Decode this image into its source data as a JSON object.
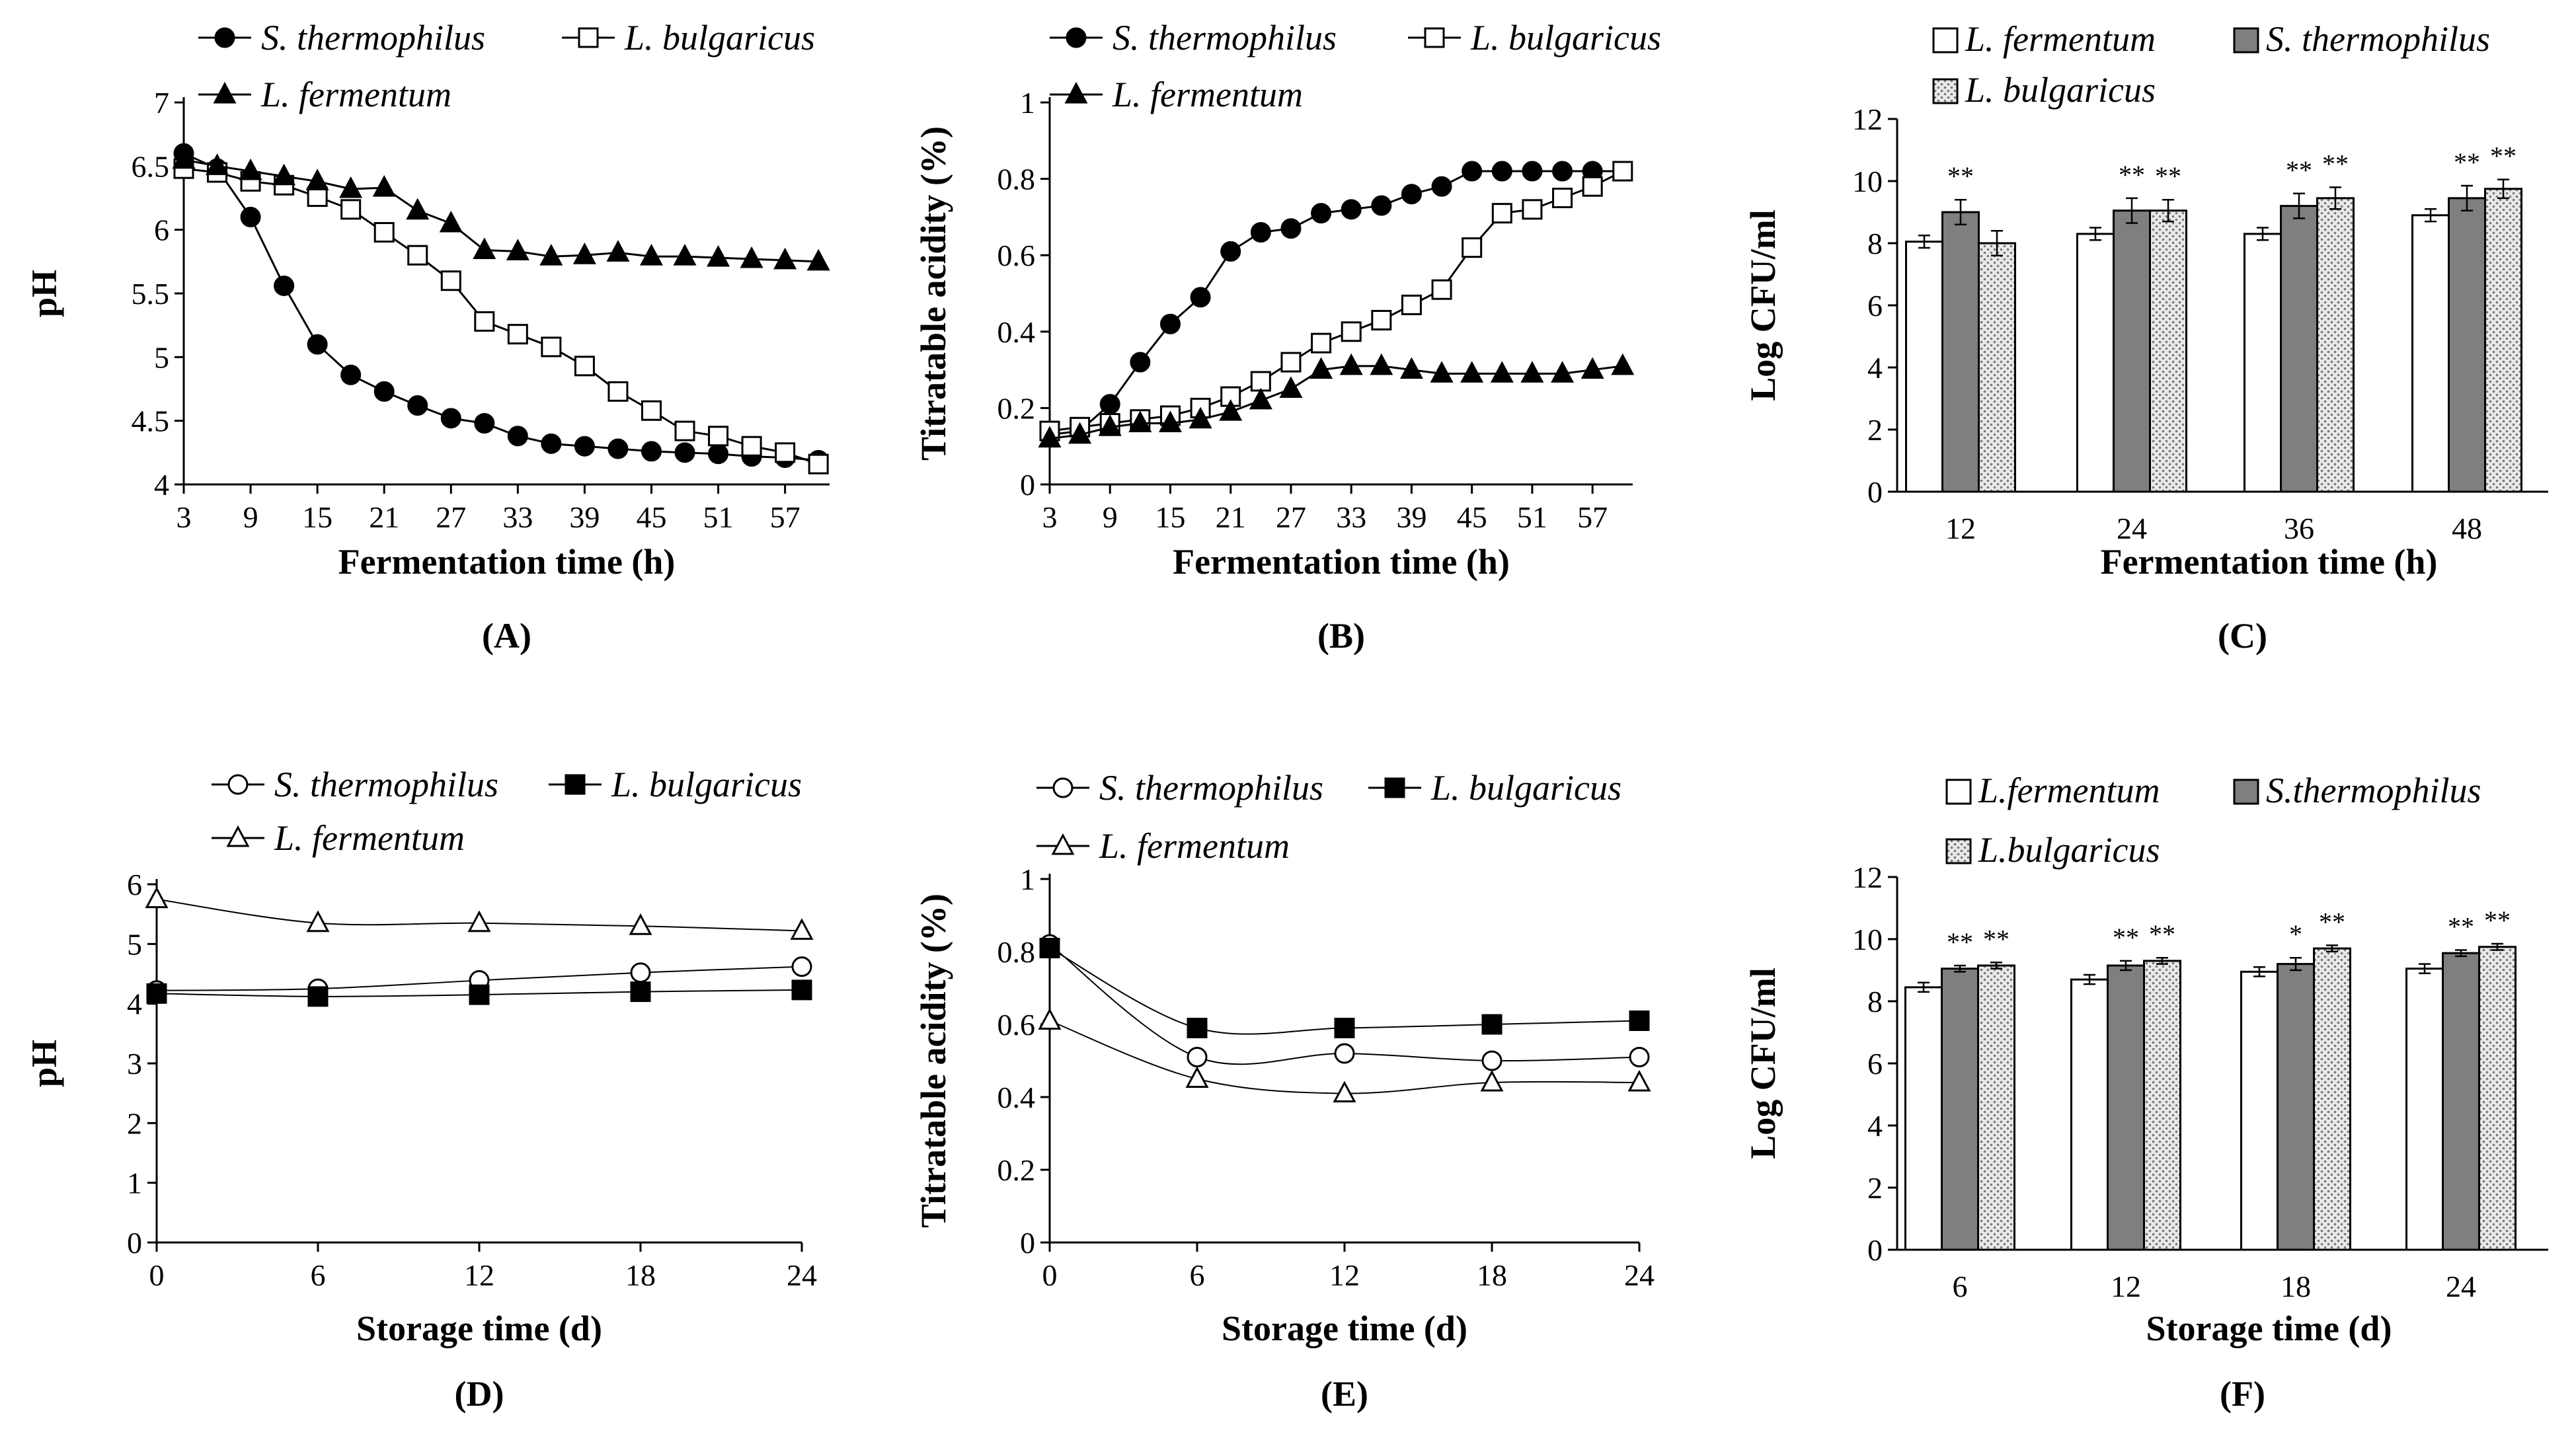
{
  "chart_data": [
    {
      "panel": "(A)",
      "type": "line",
      "xlabel": "Fermentation time (h)",
      "ylabel": "pH",
      "xlim": [
        3,
        61
      ],
      "ylim": [
        4,
        7
      ],
      "xticks": [
        "3",
        "9",
        "15",
        "21",
        "27",
        "33",
        "39",
        "45",
        "51",
        "57"
      ],
      "yticks": [
        "4",
        "4.5",
        "5",
        "5.5",
        "6",
        "6.5",
        "7"
      ],
      "series": [
        {
          "name": "S. thermophilus",
          "marker": "filled-circle",
          "x": [
            3,
            6,
            9,
            12,
            15,
            18,
            21,
            24,
            27,
            30,
            33,
            36,
            39,
            42,
            45,
            48,
            51,
            54,
            57,
            60
          ],
          "y": [
            6.6,
            6.48,
            6.1,
            5.56,
            5.1,
            4.86,
            4.73,
            4.62,
            4.52,
            4.48,
            4.38,
            4.32,
            4.3,
            4.28,
            4.26,
            4.25,
            4.24,
            4.22,
            4.21,
            4.19
          ]
        },
        {
          "name": "L. bulgaricus",
          "marker": "open-square",
          "x": [
            3,
            6,
            9,
            12,
            15,
            18,
            21,
            24,
            27,
            30,
            33,
            36,
            39,
            42,
            45,
            48,
            51,
            54,
            57,
            60
          ],
          "y": [
            6.48,
            6.45,
            6.38,
            6.35,
            6.26,
            6.16,
            5.98,
            5.8,
            5.6,
            5.28,
            5.18,
            5.08,
            4.93,
            4.73,
            4.58,
            4.42,
            4.38,
            4.3,
            4.25,
            4.16
          ]
        },
        {
          "name": "L. fermentum",
          "marker": "filled-triangle",
          "x": [
            3,
            6,
            9,
            12,
            15,
            18,
            21,
            24,
            27,
            30,
            33,
            36,
            39,
            42,
            45,
            48,
            51,
            54,
            57,
            60
          ],
          "y": [
            6.55,
            6.5,
            6.46,
            6.42,
            6.38,
            6.32,
            6.33,
            6.15,
            6.05,
            5.84,
            5.83,
            5.79,
            5.8,
            5.82,
            5.79,
            5.79,
            5.78,
            5.77,
            5.76,
            5.75
          ]
        }
      ],
      "legend": [
        "S. thermophilus",
        "L. bulgaricus",
        "L. fermentum"
      ]
    },
    {
      "panel": "(B)",
      "type": "line",
      "xlabel": "Fermentation time (h)",
      "ylabel": "Titratable acidity (%)",
      "xlim": [
        3,
        61
      ],
      "ylim": [
        0,
        1
      ],
      "xticks": [
        "3",
        "9",
        "15",
        "21",
        "27",
        "33",
        "39",
        "45",
        "51",
        "57"
      ],
      "yticks": [
        "0",
        "0.2",
        "0.4",
        "0.6",
        "0.8",
        "1"
      ],
      "series": [
        {
          "name": "S. thermophilus",
          "marker": "filled-circle",
          "x": [
            3,
            6,
            9,
            12,
            15,
            18,
            21,
            24,
            27,
            30,
            33,
            36,
            39,
            42,
            45,
            48,
            51,
            54,
            57,
            60
          ],
          "y": [
            0.13,
            0.14,
            0.21,
            0.32,
            0.42,
            0.49,
            0.61,
            0.66,
            0.67,
            0.71,
            0.72,
            0.73,
            0.76,
            0.78,
            0.82,
            0.82,
            0.82,
            0.82,
            0.82,
            0.82
          ]
        },
        {
          "name": "L. bulgaricus",
          "marker": "open-square",
          "x": [
            3,
            6,
            9,
            12,
            15,
            18,
            21,
            24,
            27,
            30,
            33,
            36,
            39,
            42,
            45,
            48,
            51,
            54,
            57,
            60
          ],
          "y": [
            0.14,
            0.15,
            0.16,
            0.17,
            0.18,
            0.2,
            0.23,
            0.27,
            0.32,
            0.37,
            0.4,
            0.43,
            0.47,
            0.51,
            0.62,
            0.71,
            0.72,
            0.75,
            0.78,
            0.82
          ]
        },
        {
          "name": "L. fermentum",
          "marker": "filled-triangle",
          "x": [
            3,
            6,
            9,
            12,
            15,
            18,
            21,
            24,
            27,
            30,
            33,
            36,
            39,
            42,
            45,
            48,
            51,
            54,
            57,
            60
          ],
          "y": [
            0.12,
            0.13,
            0.15,
            0.16,
            0.16,
            0.17,
            0.19,
            0.22,
            0.25,
            0.3,
            0.31,
            0.31,
            0.3,
            0.29,
            0.29,
            0.29,
            0.29,
            0.29,
            0.3,
            0.31
          ]
        }
      ],
      "legend": [
        "S. thermophilus",
        "L. bulgaricus",
        "L. fermentum"
      ]
    },
    {
      "panel": "(C)",
      "type": "bar",
      "xlabel": "Fermentation time (h)",
      "ylabel": "Log CFU/ml",
      "ylim": [
        0,
        12
      ],
      "yticks": [
        "0",
        "2",
        "4",
        "6",
        "8",
        "10",
        "12"
      ],
      "categories": [
        "12",
        "24",
        "36",
        "48"
      ],
      "series": [
        {
          "name": "L. fermentum",
          "fill": "white",
          "values": [
            8.05,
            8.3,
            8.3,
            8.9
          ],
          "errors": [
            0.2,
            0.2,
            0.2,
            0.2
          ],
          "sig": [
            "",
            "",
            "",
            ""
          ]
        },
        {
          "name": "S. thermophilus",
          "fill": "gray",
          "values": [
            9.0,
            9.05,
            9.2,
            9.45
          ],
          "errors": [
            0.4,
            0.4,
            0.4,
            0.4
          ],
          "sig": [
            "**",
            "**",
            "**",
            "**"
          ]
        },
        {
          "name": "L. bulgaricus",
          "fill": "dotted",
          "values": [
            8.0,
            9.05,
            9.45,
            9.75
          ],
          "errors": [
            0.4,
            0.35,
            0.35,
            0.3
          ],
          "sig": [
            "",
            "**",
            "**",
            "**"
          ]
        }
      ],
      "legend": [
        "L. fermentum",
        "S. thermophilus",
        "L. bulgaricus"
      ]
    },
    {
      "panel": "(D)",
      "type": "line",
      "xlabel": "Storage time (d)",
      "ylabel": "pH",
      "xlim": [
        0,
        24
      ],
      "ylim": [
        0,
        6
      ],
      "xticks": [
        "0",
        "6",
        "12",
        "18",
        "24"
      ],
      "yticks": [
        "0",
        "1",
        "2",
        "3",
        "4",
        "5",
        "6"
      ],
      "series": [
        {
          "name": "S. thermophilus",
          "marker": "open-circle",
          "x": [
            0,
            6,
            12,
            18,
            24
          ],
          "y": [
            4.22,
            4.25,
            4.39,
            4.52,
            4.62
          ]
        },
        {
          "name": "L. bulgaricus",
          "marker": "filled-square",
          "x": [
            0,
            6,
            12,
            18,
            24
          ],
          "y": [
            4.17,
            4.12,
            4.15,
            4.2,
            4.23
          ]
        },
        {
          "name": "L. fermentum",
          "marker": "open-triangle",
          "x": [
            0,
            6,
            12,
            18,
            24
          ],
          "y": [
            5.75,
            5.35,
            5.35,
            5.3,
            5.22
          ]
        }
      ],
      "legend": [
        "S. thermophilus",
        "L. bulgaricus",
        "L. fermentum"
      ]
    },
    {
      "panel": "(E)",
      "type": "line",
      "xlabel": "Storage time (d)",
      "ylabel": "Titratable acidity (%)",
      "xlim": [
        0,
        24
      ],
      "ylim": [
        0,
        1
      ],
      "xticks": [
        "0",
        "6",
        "12",
        "18",
        "24"
      ],
      "yticks": [
        "0",
        "0.2",
        "0.4",
        "0.6",
        "0.8",
        "1"
      ],
      "series": [
        {
          "name": "S. thermophilus",
          "marker": "open-circle",
          "x": [
            0,
            6,
            12,
            18,
            24
          ],
          "y": [
            0.82,
            0.51,
            0.52,
            0.5,
            0.51
          ]
        },
        {
          "name": "L. bulgaricus",
          "marker": "filled-square",
          "x": [
            0,
            6,
            12,
            18,
            24
          ],
          "y": [
            0.81,
            0.59,
            0.59,
            0.6,
            0.61
          ]
        },
        {
          "name": "L. fermentum",
          "marker": "open-triangle",
          "x": [
            0,
            6,
            12,
            18,
            24
          ],
          "y": [
            0.61,
            0.45,
            0.41,
            0.44,
            0.44
          ]
        }
      ],
      "legend": [
        "S. thermophilus",
        "L. bulgaricus",
        "L. fermentum"
      ]
    },
    {
      "panel": "(F)",
      "type": "bar",
      "xlabel": "Storage time (d)",
      "ylabel": "Log CFU/ml",
      "ylim": [
        0,
        12
      ],
      "yticks": [
        "0",
        "2",
        "4",
        "6",
        "8",
        "10",
        "12"
      ],
      "categories": [
        "6",
        "12",
        "18",
        "24"
      ],
      "series": [
        {
          "name": "L.fermentum",
          "fill": "white",
          "values": [
            8.45,
            8.7,
            8.95,
            9.05
          ],
          "errors": [
            0.15,
            0.15,
            0.15,
            0.15
          ],
          "sig": [
            "",
            "",
            "",
            ""
          ]
        },
        {
          "name": "S.thermophilus",
          "fill": "gray",
          "values": [
            9.05,
            9.15,
            9.2,
            9.55
          ],
          "errors": [
            0.1,
            0.15,
            0.2,
            0.1
          ],
          "sig": [
            "**",
            "**",
            "*",
            "**"
          ]
        },
        {
          "name": "L.bulgaricus",
          "fill": "dotted",
          "values": [
            9.15,
            9.3,
            9.7,
            9.75
          ],
          "errors": [
            0.1,
            0.1,
            0.1,
            0.1
          ],
          "sig": [
            "**",
            "**",
            "**",
            "**"
          ]
        }
      ],
      "legend": [
        "L.fermentum",
        "S.thermophilus",
        "L.bulgaricus"
      ]
    }
  ]
}
